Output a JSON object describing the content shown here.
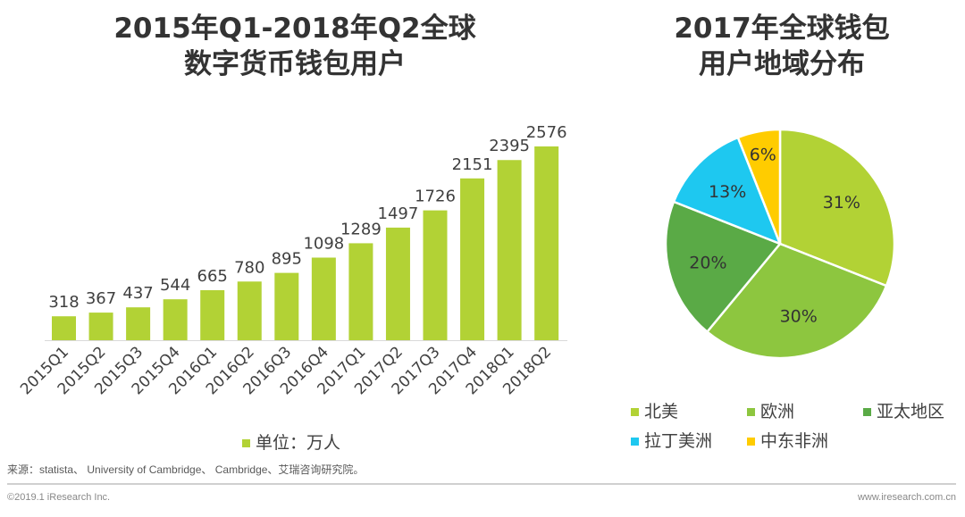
{
  "chart_data": [
    {
      "type": "bar",
      "title": "2015年Q1-2018年Q2全球数字货币钱包用户",
      "categories": [
        "2015Q1",
        "2015Q2",
        "2015Q3",
        "2015Q4",
        "2016Q1",
        "2016Q2",
        "2016Q3",
        "2016Q4",
        "2017Q1",
        "2017Q2",
        "2017Q3",
        "2017Q4",
        "2018Q1",
        "2018Q2"
      ],
      "values": [
        318,
        367,
        437,
        544,
        665,
        780,
        895,
        1098,
        1289,
        1497,
        1726,
        2151,
        2395,
        2576
      ],
      "legend": "单位：万人",
      "color": "#b2d235",
      "grid": false
    },
    {
      "type": "pie",
      "title": "2017年全球钱包用户地域分布",
      "labels": [
        "北美",
        "欧洲",
        "亚太地区",
        "拉丁美洲",
        "中东非洲"
      ],
      "values": [
        31,
        30,
        20,
        13,
        6
      ],
      "data_labels": [
        "31%",
        "30%",
        "20%",
        "13%",
        "6%"
      ],
      "colors": [
        "#b2d235",
        "#8dc63f",
        "#5aaa46",
        "#1ec8f0",
        "#ffcc00"
      ],
      "legend_position": "bottom"
    }
  ],
  "titles": {
    "bar_line1": "2015年Q1-2018年Q2全球",
    "bar_line2": "数字货币钱包用户",
    "pie_line1": "2017年全球钱包",
    "pie_line2": "用户地域分布"
  },
  "footer": {
    "source": "来源：statista、 University of Cambridge、 Cambridge、艾瑞咨询研究院。",
    "copyright": "©2019.1 iResearch Inc.",
    "website": "www.iresearch.com.cn"
  }
}
